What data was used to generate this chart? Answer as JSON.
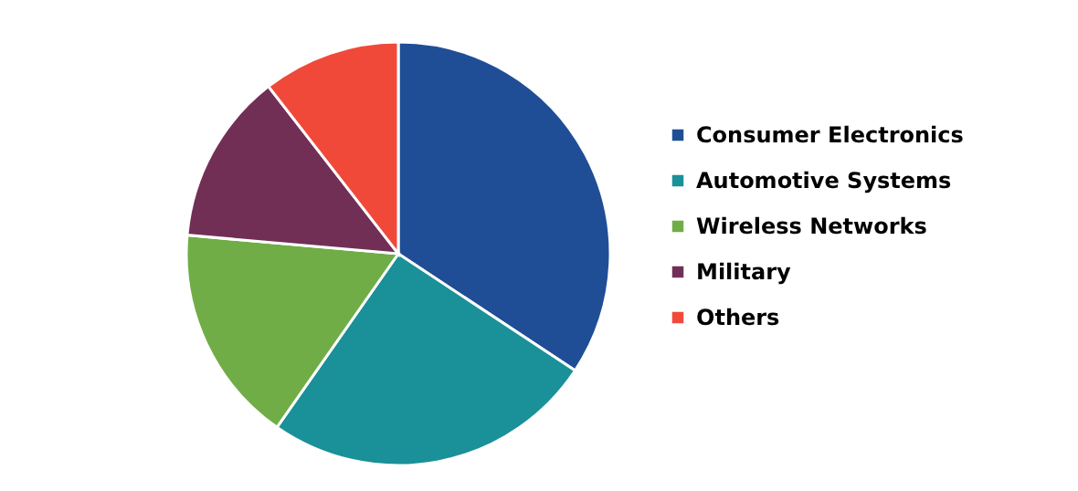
{
  "chart_data": {
    "type": "pie",
    "categories": [
      "Consumer Electronics",
      "Automotive Systems",
      "Wireless Networks",
      "Military",
      "Others"
    ],
    "values": [
      34.3,
      25.4,
      16.7,
      13.1,
      10.5
    ],
    "colors": [
      "#1f4e96",
      "#1a9099",
      "#70ad47",
      "#722f56",
      "#f0493a"
    ],
    "legend": "right"
  }
}
